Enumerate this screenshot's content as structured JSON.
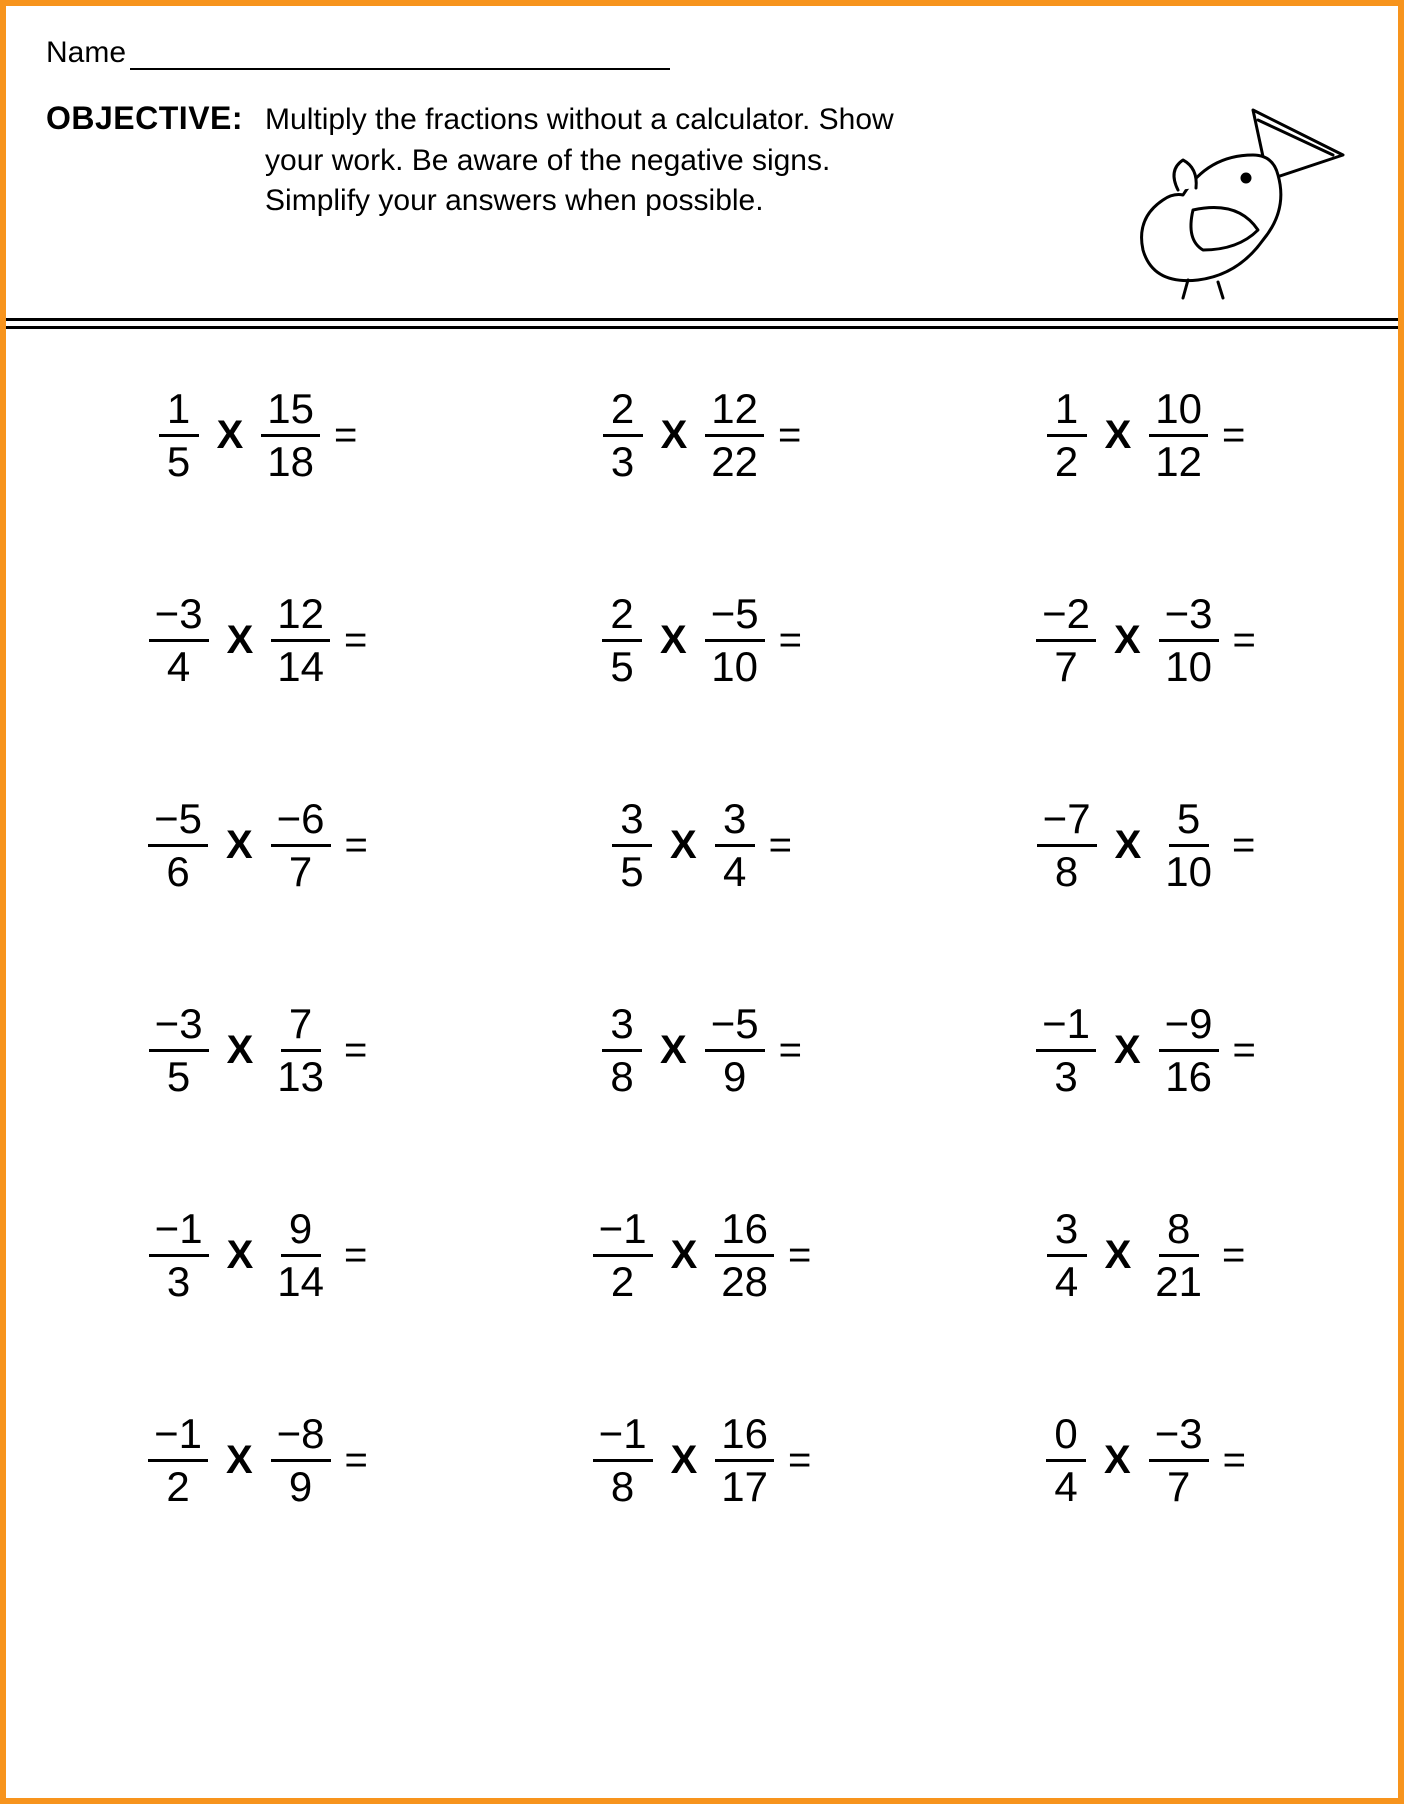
{
  "colors": {
    "border": "#f7941d",
    "text": "#000000",
    "bg": "#ffffff"
  },
  "name_label": "Name",
  "objective_label": "OBJECTIVE:",
  "objective_text": "Multiply the fractions without a calculator. Show your work. Be aware of the negative signs. Simplify your answers when possible.",
  "operator": "X",
  "equals": "=",
  "problems": [
    {
      "a_num": "1",
      "a_den": "5",
      "b_num": "15",
      "b_den": "18"
    },
    {
      "a_num": "2",
      "a_den": "3",
      "b_num": "12",
      "b_den": "22"
    },
    {
      "a_num": "1",
      "a_den": "2",
      "b_num": "10",
      "b_den": "12"
    },
    {
      "a_num": "−3",
      "a_den": "4",
      "b_num": "12",
      "b_den": "14"
    },
    {
      "a_num": "2",
      "a_den": "5",
      "b_num": "−5",
      "b_den": "10"
    },
    {
      "a_num": "−2",
      "a_den": "7",
      "b_num": "−3",
      "b_den": "10"
    },
    {
      "a_num": "−5",
      "a_den": "6",
      "b_num": "−6",
      "b_den": "7"
    },
    {
      "a_num": "3",
      "a_den": "5",
      "b_num": "3",
      "b_den": "4"
    },
    {
      "a_num": "−7",
      "a_den": "8",
      "b_num": "5",
      "b_den": "10"
    },
    {
      "a_num": "−3",
      "a_den": "5",
      "b_num": "7",
      "b_den": "13"
    },
    {
      "a_num": "3",
      "a_den": "8",
      "b_num": "−5",
      "b_den": "9"
    },
    {
      "a_num": "−1",
      "a_den": "3",
      "b_num": "−9",
      "b_den": "16"
    },
    {
      "a_num": "−1",
      "a_den": "3",
      "b_num": "9",
      "b_den": "14"
    },
    {
      "a_num": "−1",
      "a_den": "2",
      "b_num": "16",
      "b_den": "28"
    },
    {
      "a_num": "3",
      "a_den": "4",
      "b_num": "8",
      "b_den": "21"
    },
    {
      "a_num": "−1",
      "a_den": "2",
      "b_num": "−8",
      "b_den": "9"
    },
    {
      "a_num": "−1",
      "a_den": "8",
      "b_num": "16",
      "b_den": "17"
    },
    {
      "a_num": "0",
      "a_den": "4",
      "b_num": "−3",
      "b_den": "7"
    }
  ]
}
